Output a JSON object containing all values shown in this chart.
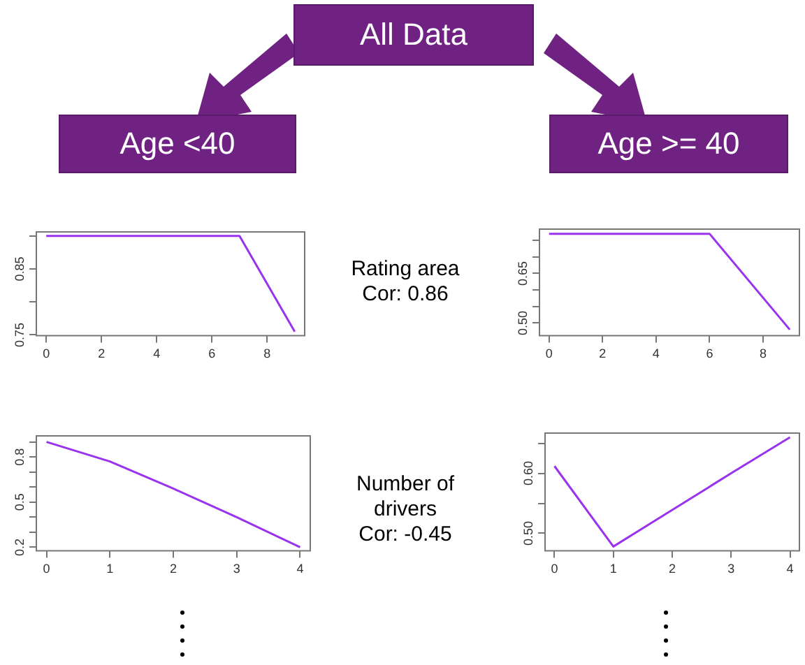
{
  "chart_data": [
    {
      "type": "other",
      "annotations": [
        "All Data",
        "Age <40",
        "Age >= 40"
      ]
    },
    {
      "type": "line",
      "x": [
        0,
        7,
        9
      ],
      "values": [
        0.9,
        0.9,
        0.755
      ],
      "color": "#9933ee",
      "marker": "none",
      "line_style": "solid",
      "xlim": [
        -0.36,
        9.36
      ],
      "xticks": [
        0,
        2,
        4,
        6,
        8
      ],
      "ylim": [
        0.749,
        0.906
      ],
      "yticks": [
        0.75,
        {
          "value": 0.8,
          "label": null
        },
        0.85,
        {
          "value": 0.9,
          "label": null
        }
      ],
      "annotations": [
        "Rating area",
        "Cor: 0.86"
      ]
    },
    {
      "type": "line",
      "x": [
        0,
        6,
        9
      ],
      "values": [
        0.77,
        0.77,
        0.48
      ],
      "color": "#9933ee",
      "marker": "none",
      "line_style": "solid",
      "xlim": [
        -0.36,
        9.36
      ],
      "xticks": [
        0,
        2,
        4,
        6,
        8
      ],
      "ylim": [
        0.462,
        0.784
      ],
      "yticks": [
        {
          "value": 0.5,
          "label": "0.50"
        },
        {
          "value": 0.55,
          "label": null
        },
        {
          "value": 0.6,
          "label": null
        },
        0.65,
        {
          "value": 0.7,
          "label": null
        },
        {
          "value": 0.75,
          "label": null
        }
      ]
    },
    {
      "type": "line",
      "x": [
        0,
        1,
        2,
        3,
        4
      ],
      "values": [
        0.9,
        0.77,
        0.59,
        0.4,
        0.2
      ],
      "color": "#9933ee",
      "marker": "none",
      "line_style": "solid",
      "xlim": [
        -0.16,
        4.16
      ],
      "xticks": [
        0,
        1,
        2,
        3,
        4
      ],
      "ylim": [
        0.177,
        0.94
      ],
      "yticks": [
        0.2,
        {
          "value": 0.3,
          "label": null
        },
        {
          "value": 0.4,
          "label": null
        },
        0.5,
        {
          "value": 0.6,
          "label": null
        },
        {
          "value": 0.7,
          "label": null
        },
        0.8,
        {
          "value": 0.9,
          "label": null
        }
      ],
      "annotations": [
        "Number of drivers",
        "Cor: -0.45"
      ]
    },
    {
      "type": "line",
      "x": [
        0,
        1,
        2,
        3,
        4
      ],
      "values": [
        0.612,
        0.478,
        0.539,
        0.6,
        0.66
      ],
      "color": "#9933ee",
      "marker": "none",
      "line_style": "solid",
      "xlim": [
        -0.16,
        4.16
      ],
      "xticks": [
        0,
        1,
        2,
        3,
        4
      ],
      "ylim": [
        0.471,
        0.667
      ],
      "yticks": [
        {
          "value": 0.5,
          "label": "0.50"
        },
        {
          "value": 0.55,
          "label": null
        },
        {
          "value": 0.6,
          "label": "0.60"
        },
        {
          "value": 0.65,
          "label": null
        }
      ]
    }
  ]
}
